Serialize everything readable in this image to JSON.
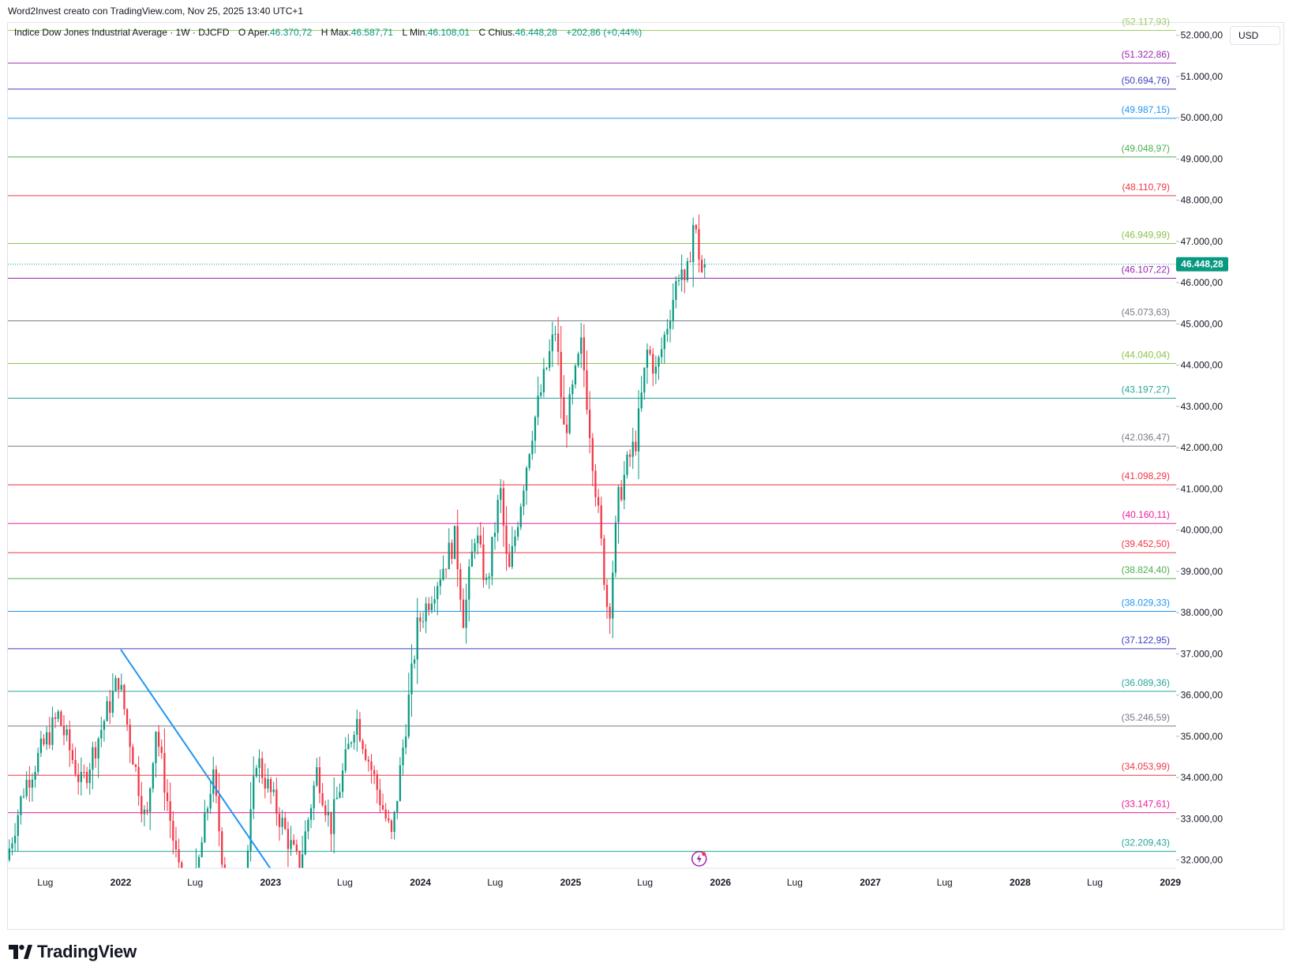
{
  "header": {
    "caption": "Word2Invest creato con TradingView.com, Nov 25, 2025 13:40 UTC+1"
  },
  "legend": {
    "title": "Indice Dow Jones Industrial Average · 1W · DJCFD",
    "open_label": "O",
    "open_prefix": "Aper.",
    "open_value": "46.370,72",
    "high_label": "H",
    "high_prefix": "Max.",
    "high_value": "46.587,71",
    "low_label": "L",
    "low_prefix": "Min.",
    "low_value": "46.108,01",
    "close_label": "C",
    "close_prefix": "Chius.",
    "close_value": "46.448,28",
    "change": "+202,86 (+0,44%)"
  },
  "currency_button": "USD",
  "brand": {
    "name": "TradingView"
  },
  "colors": {
    "up": "#089981",
    "down": "#f23645",
    "trendline": "#2196f3",
    "price_tag": "#089981"
  },
  "chart_data": {
    "type": "candlestick",
    "timeframe": "1W",
    "symbol": "DJCFD",
    "y_range": [
      31800,
      52300
    ],
    "y_ticks": [
      {
        "value": 32000,
        "label": "32.000,00"
      },
      {
        "value": 33000,
        "label": "33.000,00"
      },
      {
        "value": 34000,
        "label": "34.000,00"
      },
      {
        "value": 35000,
        "label": "35.000,00"
      },
      {
        "value": 36000,
        "label": "36.000,00"
      },
      {
        "value": 37000,
        "label": "37.000,00"
      },
      {
        "value": 38000,
        "label": "38.000,00"
      },
      {
        "value": 39000,
        "label": "39.000,00"
      },
      {
        "value": 40000,
        "label": "40.000,00"
      },
      {
        "value": 41000,
        "label": "41.000,00"
      },
      {
        "value": 42000,
        "label": "42.000,00"
      },
      {
        "value": 43000,
        "label": "43.000,00"
      },
      {
        "value": 44000,
        "label": "44.000,00"
      },
      {
        "value": 45000,
        "label": "45.000,00"
      },
      {
        "value": 46000,
        "label": "46.000,00"
      },
      {
        "value": 47000,
        "label": "47.000,00"
      },
      {
        "value": 48000,
        "label": "48.000,00"
      },
      {
        "value": 49000,
        "label": "49.000,00"
      },
      {
        "value": 50000,
        "label": "50.000,00"
      },
      {
        "value": 51000,
        "label": "51.000,00"
      },
      {
        "value": 52000,
        "label": "52.000,00"
      }
    ],
    "x_range": [
      "2021-04-01",
      "2029-01-15"
    ],
    "x_ticks": [
      {
        "date": "2021-07-01",
        "label": "Lug",
        "bold": false
      },
      {
        "date": "2022-01-01",
        "label": "2022",
        "bold": true
      },
      {
        "date": "2022-07-01",
        "label": "Lug",
        "bold": false
      },
      {
        "date": "2023-01-01",
        "label": "2023",
        "bold": true
      },
      {
        "date": "2023-07-01",
        "label": "Lug",
        "bold": false
      },
      {
        "date": "2024-01-01",
        "label": "2024",
        "bold": true
      },
      {
        "date": "2024-07-01",
        "label": "Lug",
        "bold": false
      },
      {
        "date": "2025-01-01",
        "label": "2025",
        "bold": true
      },
      {
        "date": "2025-07-01",
        "label": "Lug",
        "bold": false
      },
      {
        "date": "2026-01-01",
        "label": "2026",
        "bold": true
      },
      {
        "date": "2026-07-01",
        "label": "Lug",
        "bold": false
      },
      {
        "date": "2027-01-01",
        "label": "2027",
        "bold": true
      },
      {
        "date": "2027-07-01",
        "label": "Lug",
        "bold": false
      },
      {
        "date": "2028-01-01",
        "label": "2028",
        "bold": true
      },
      {
        "date": "2028-07-01",
        "label": "Lug",
        "bold": false
      },
      {
        "date": "2029-01-01",
        "label": "2029",
        "bold": true
      }
    ],
    "levels": [
      {
        "value": 52117.93,
        "label": "(52.117,93)",
        "color": "#9ccc65"
      },
      {
        "value": 51322.86,
        "label": "(51.322,86)",
        "color": "#9c27b0"
      },
      {
        "value": 50694.76,
        "label": "(50.694,76)",
        "color": "#3f3fbf"
      },
      {
        "value": 49987.15,
        "label": "(49.987,15)",
        "color": "#2196f3"
      },
      {
        "value": 49048.97,
        "label": "(49.048,97)",
        "color": "#4caf50"
      },
      {
        "value": 48110.79,
        "label": "(48.110,79)",
        "color": "#f23645"
      },
      {
        "value": 46949.99,
        "label": "(46.949,99)",
        "color": "#8bc34a"
      },
      {
        "value": 46107.22,
        "label": "(46.107,22)",
        "color": "#9c27b0"
      },
      {
        "value": 45073.63,
        "label": "(45.073,63)",
        "color": "#787b86"
      },
      {
        "value": 44040.04,
        "label": "(44.040,04)",
        "color": "#8bc34a"
      },
      {
        "value": 43197.27,
        "label": "(43.197,27)",
        "color": "#26a69a"
      },
      {
        "value": 42036.47,
        "label": "(42.036,47)",
        "color": "#787b86"
      },
      {
        "value": 41098.29,
        "label": "(41.098,29)",
        "color": "#f23645"
      },
      {
        "value": 40160.11,
        "label": "(40.160,11)",
        "color": "#e91e9f"
      },
      {
        "value": 39452.5,
        "label": "(39.452,50)",
        "color": "#f23645"
      },
      {
        "value": 38824.4,
        "label": "(38.824,40)",
        "color": "#4caf50"
      },
      {
        "value": 38029.33,
        "label": "(38.029,33)",
        "color": "#2196f3"
      },
      {
        "value": 37122.95,
        "label": "(37.122,95)",
        "color": "#3f3fbf"
      },
      {
        "value": 36089.36,
        "label": "(36.089,36)",
        "color": "#26a69a"
      },
      {
        "value": 35246.59,
        "label": "(35.246,59)",
        "color": "#787b86"
      },
      {
        "value": 34053.99,
        "label": "(34.053,99)",
        "color": "#f23645"
      },
      {
        "value": 33147.61,
        "label": "(33.147,61)",
        "color": "#e91e9f"
      },
      {
        "value": 32209.43,
        "label": "(32.209,43)",
        "color": "#26a69a"
      }
    ],
    "last_price": {
      "value": 46448.28,
      "label": "46.448,28"
    },
    "trendline": {
      "start": {
        "date": "2022-01-01",
        "value": 37100
      },
      "end": {
        "date": "2022-12-31",
        "value": 31800
      }
    },
    "anchors": [
      {
        "date": "2021-04-01",
        "value": 32000
      },
      {
        "date": "2021-05-15",
        "value": 33800
      },
      {
        "date": "2021-08-05",
        "value": 35500
      },
      {
        "date": "2021-10-01",
        "value": 33800
      },
      {
        "date": "2021-12-30",
        "value": 36400
      },
      {
        "date": "2022-03-08",
        "value": 32800
      },
      {
        "date": "2022-03-30",
        "value": 35300
      },
      {
        "date": "2022-06-17",
        "value": 30200
      },
      {
        "date": "2022-08-16",
        "value": 34100
      },
      {
        "date": "2022-10-13",
        "value": 29200
      },
      {
        "date": "2022-12-01",
        "value": 34500
      },
      {
        "date": "2023-03-15",
        "value": 31800
      },
      {
        "date": "2023-04-28",
        "value": 34200
      },
      {
        "date": "2023-05-31",
        "value": 32800
      },
      {
        "date": "2023-07-31",
        "value": 35500
      },
      {
        "date": "2023-10-27",
        "value": 32500
      },
      {
        "date": "2023-12-29",
        "value": 37700
      },
      {
        "date": "2024-03-29",
        "value": 39800
      },
      {
        "date": "2024-04-19",
        "value": 37800
      },
      {
        "date": "2024-05-17",
        "value": 40000
      },
      {
        "date": "2024-06-14",
        "value": 38600
      },
      {
        "date": "2024-07-17",
        "value": 41000
      },
      {
        "date": "2024-08-05",
        "value": 38800
      },
      {
        "date": "2024-09-30",
        "value": 42300
      },
      {
        "date": "2024-11-29",
        "value": 44900
      },
      {
        "date": "2024-12-20",
        "value": 42300
      },
      {
        "date": "2025-01-31",
        "value": 44500
      },
      {
        "date": "2025-04-07",
        "value": 37800
      },
      {
        "date": "2025-04-30",
        "value": 40700
      },
      {
        "date": "2025-05-23",
        "value": 41600
      },
      {
        "date": "2025-06-13",
        "value": 42200
      },
      {
        "date": "2025-07-11",
        "value": 44400
      },
      {
        "date": "2025-08-01",
        "value": 43800
      },
      {
        "date": "2025-09-30",
        "value": 46500
      },
      {
        "date": "2025-10-10",
        "value": 45700
      },
      {
        "date": "2025-10-31",
        "value": 47500
      },
      {
        "date": "2025-11-21",
        "value": 46200
      },
      {
        "date": "2025-11-25",
        "value": 46448
      }
    ],
    "last_candle": {
      "date": "2025-11-25",
      "open": 46370.72,
      "high": 46587.71,
      "low": 46108.01,
      "close": 46448.28
    }
  }
}
